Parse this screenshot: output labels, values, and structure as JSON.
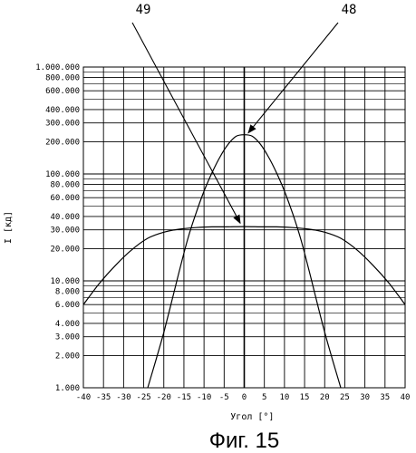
{
  "chart_data": {
    "type": "line",
    "xlabel": "Угол [°]",
    "ylabel": "I [кд]",
    "caption": "Фиг. 15",
    "y_scale": "log",
    "xlim": [
      -40,
      40
    ],
    "ylim": [
      1000,
      1000000
    ],
    "grid": true,
    "x_ticks": [
      -40,
      -35,
      -30,
      -25,
      -20,
      -15,
      -10,
      -5,
      0,
      5,
      10,
      15,
      20,
      25,
      30,
      35,
      40
    ],
    "x_tick_labels": [
      "-40",
      "-35",
      "-30",
      "-25",
      "-20",
      "-15",
      "-10",
      "-5",
      "0",
      "5",
      "10",
      "15",
      "20",
      "25",
      "30",
      "35",
      "40"
    ],
    "y_ticks": [
      1000,
      2000,
      3000,
      4000,
      6000,
      8000,
      10000,
      20000,
      30000,
      40000,
      60000,
      80000,
      100000,
      200000,
      300000,
      400000,
      600000,
      800000,
      1000000
    ],
    "y_tick_labels": [
      "1.000",
      "2.000",
      "3.000",
      "4.000",
      "6.000",
      "8.000",
      "10.000",
      "20.000",
      "30.000",
      "40.000",
      "60.000",
      "80.000",
      "100.000",
      "200.000",
      "300.000",
      "400.000",
      "600.000",
      "800.000",
      "1.000.000"
    ],
    "series": [
      {
        "id": "48",
        "x": [
          -24,
          -22,
          -20,
          -18,
          -16,
          -14,
          -12,
          -10,
          -8,
          -6,
          -4,
          -2,
          0,
          2,
          4,
          6,
          8,
          10,
          12,
          14,
          16,
          18,
          20,
          22,
          24
        ],
        "values": [
          1000,
          1800,
          3300,
          6500,
          13000,
          25000,
          43000,
          69000,
          103000,
          145000,
          190000,
          225000,
          233000,
          225000,
          190000,
          145000,
          103000,
          69000,
          43000,
          25000,
          13000,
          6500,
          3300,
          1800,
          1000
        ]
      },
      {
        "id": "49",
        "x": [
          -40,
          -36,
          -32,
          -28,
          -24,
          -20,
          -16,
          -12,
          -8,
          -4,
          0,
          4,
          8,
          12,
          16,
          20,
          24,
          28,
          32,
          36,
          40
        ],
        "values": [
          6000,
          9500,
          14000,
          19500,
          25000,
          28500,
          30500,
          31500,
          32000,
          32000,
          32200,
          32000,
          32000,
          31500,
          30500,
          28500,
          25000,
          19500,
          14000,
          9500,
          6000
        ]
      }
    ],
    "annotations": [
      {
        "label": "48",
        "target_x": 1,
        "target_y": 224000
      },
      {
        "label": "49",
        "target_x": -1,
        "target_y": 32000
      }
    ]
  }
}
